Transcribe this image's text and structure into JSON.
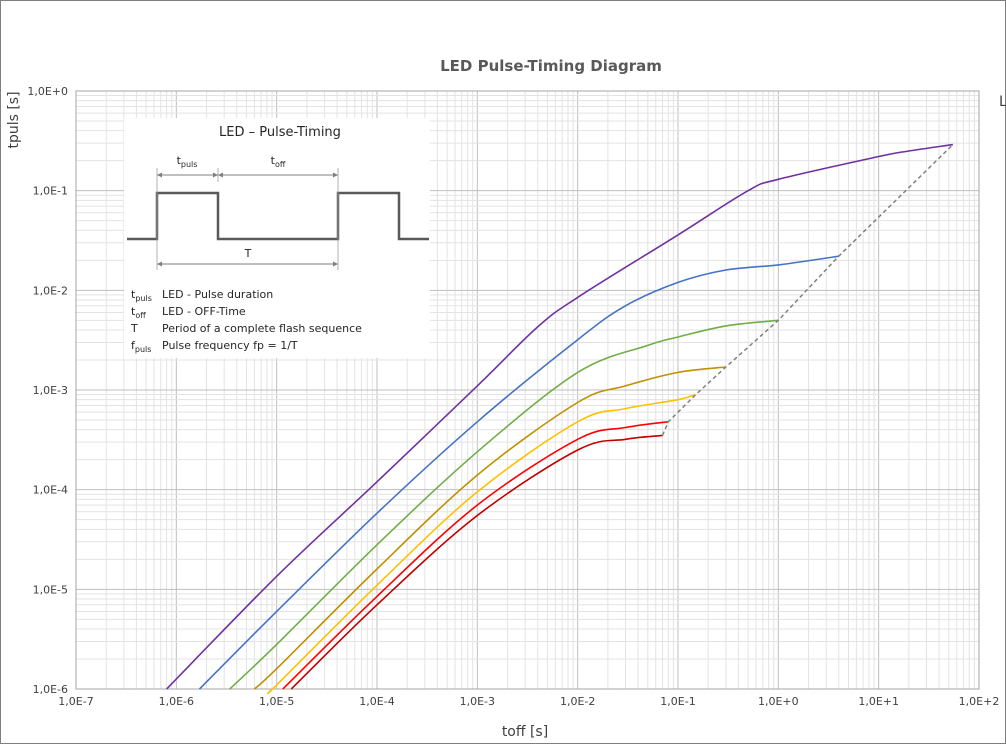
{
  "chart_data": {
    "type": "line",
    "title": "LED Pulse-Timing Diagram",
    "xlabel": "toff [s]",
    "ylabel": "tpuls [s]",
    "x_scale": "log",
    "y_scale": "log",
    "xlim": [
      1e-07,
      100
    ],
    "ylim": [
      1e-06,
      1
    ],
    "x_tick_labels": [
      "1,0E-7",
      "1,0E-6",
      "1,0E-5",
      "1,0E-4",
      "1,0E-3",
      "1,0E-2",
      "1,0E-1",
      "1,0E+0",
      "1,0E+1",
      "1,0E+2"
    ],
    "y_tick_labels": [
      "1,0E-6",
      "1,0E-5",
      "1,0E-4",
      "1,0E-3",
      "1,0E-2",
      "1,0E-1",
      "1,0E+0"
    ],
    "grid": true,
    "legend_fragment": "L",
    "series": [
      {
        "color": "#7030a0",
        "points": [
          [
            8e-07,
            1e-06
          ],
          [
            1e-05,
            1.35e-05
          ],
          [
            0.0001,
            0.00012
          ],
          [
            0.001,
            0.0011
          ],
          [
            0.004,
            0.0043
          ],
          [
            0.01,
            0.0085
          ],
          [
            0.1,
            0.036
          ],
          [
            0.5,
            0.1
          ],
          [
            1,
            0.13
          ],
          [
            10,
            0.22
          ],
          [
            20,
            0.25
          ],
          [
            55,
            0.29
          ]
        ]
      },
      {
        "color": "#4472c4",
        "points": [
          [
            1.7e-06,
            1e-06
          ],
          [
            1e-05,
            6e-06
          ],
          [
            0.0001,
            5.8e-05
          ],
          [
            0.001,
            0.00048
          ],
          [
            0.01,
            0.0032
          ],
          [
            0.03,
            0.007
          ],
          [
            0.1,
            0.012
          ],
          [
            0.3,
            0.016
          ],
          [
            1,
            0.018
          ],
          [
            4,
            0.022
          ]
        ]
      },
      {
        "color": "#70ad47",
        "points": [
          [
            3.4e-06,
            1e-06
          ],
          [
            1e-05,
            2.8e-06
          ],
          [
            0.0001,
            2.8e-05
          ],
          [
            0.001,
            0.00024
          ],
          [
            0.01,
            0.0015
          ],
          [
            0.05,
            0.0028
          ],
          [
            0.1,
            0.0034
          ],
          [
            0.3,
            0.0044
          ],
          [
            1,
            0.005
          ]
        ]
      },
      {
        "color": "#bf9000",
        "points": [
          [
            6e-06,
            1e-06
          ],
          [
            1e-05,
            1.6e-06
          ],
          [
            0.0001,
            1.6e-05
          ],
          [
            0.001,
            0.00014
          ],
          [
            0.01,
            0.00075
          ],
          [
            0.03,
            0.0011
          ],
          [
            0.1,
            0.0015
          ],
          [
            0.3,
            0.0017
          ]
        ]
      },
      {
        "color": "#ffc000",
        "points": [
          [
            9e-06,
            1e-06
          ],
          [
            1e-05,
            1.1e-06
          ],
          [
            0.0001,
            1.1e-05
          ],
          [
            0.001,
            9.5e-05
          ],
          [
            0.01,
            0.00048
          ],
          [
            0.03,
            0.00065
          ],
          [
            0.1,
            0.0008
          ],
          [
            0.15,
            0.0009
          ]
        ]
      },
      {
        "color": "#ff0000",
        "points": [
          [
            1.15e-05,
            1e-06
          ],
          [
            0.0001,
            8.5e-06
          ],
          [
            0.001,
            7e-05
          ],
          [
            0.01,
            0.00032
          ],
          [
            0.03,
            0.00042
          ],
          [
            0.08,
            0.00048
          ]
        ]
      },
      {
        "color": "#c00000",
        "points": [
          [
            1.4e-05,
            1e-06
          ],
          [
            0.0001,
            7e-06
          ],
          [
            0.001,
            5.5e-05
          ],
          [
            0.01,
            0.00025
          ],
          [
            0.03,
            0.00032
          ],
          [
            0.07,
            0.00035
          ]
        ]
      },
      {
        "color": "#808080",
        "dashed": true,
        "points": [
          [
            0.07,
            0.00035
          ],
          [
            0.08,
            0.00048
          ],
          [
            0.15,
            0.0009
          ],
          [
            0.3,
            0.0017
          ],
          [
            1,
            0.005
          ],
          [
            4,
            0.022
          ],
          [
            55,
            0.29
          ]
        ]
      }
    ],
    "inset": {
      "title": "LED – Pulse-Timing",
      "tpuls": "t",
      "tpuls_sub": "puls",
      "toff": "t",
      "toff_sub": "off",
      "period": "T",
      "legend": [
        {
          "sym": "t",
          "sub": "puls",
          "text": "LED - Pulse duration"
        },
        {
          "sym": "t",
          "sub": "off",
          "text": "LED - OFF-Time"
        },
        {
          "sym": "T",
          "sub": "",
          "text": "Period of a complete flash sequence"
        },
        {
          "sym": "f",
          "sub": "puls",
          "text": "Pulse frequency fp = 1/T"
        }
      ]
    }
  }
}
